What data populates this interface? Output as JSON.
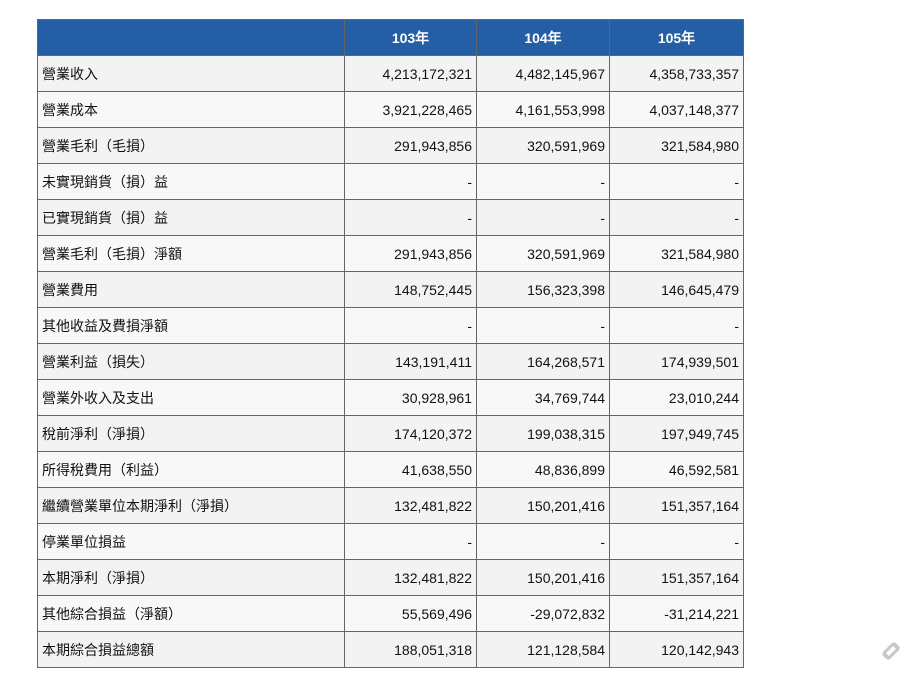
{
  "table": {
    "header": [
      "103年",
      "104年",
      "105年"
    ],
    "rows": [
      [
        "營業收入",
        "4,213,172,321",
        "4,482,145,967",
        "4,358,733,357"
      ],
      [
        "營業成本",
        "3,921,228,465",
        "4,161,553,998",
        "4,037,148,377"
      ],
      [
        "營業毛利（毛損）",
        "291,943,856",
        "320,591,969",
        "321,584,980"
      ],
      [
        "未實現銷貨（損）益",
        "-",
        "-",
        "-"
      ],
      [
        "已實現銷貨（損）益",
        "-",
        "-",
        "-"
      ],
      [
        "營業毛利（毛損）淨額",
        "291,943,856",
        "320,591,969",
        "321,584,980"
      ],
      [
        "營業費用",
        "148,752,445",
        "156,323,398",
        "146,645,479"
      ],
      [
        "其他收益及費損淨額",
        "-",
        "-",
        "-"
      ],
      [
        "營業利益（損失）",
        "143,191,411",
        "164,268,571",
        "174,939,501"
      ],
      [
        "營業外收入及支出",
        "30,928,961",
        "34,769,744",
        "23,010,244"
      ],
      [
        "稅前淨利（淨損）",
        "174,120,372",
        "199,038,315",
        "197,949,745"
      ],
      [
        "所得稅費用（利益）",
        "41,638,550",
        "48,836,899",
        "46,592,581"
      ],
      [
        "繼續營業單位本期淨利（淨損）",
        "132,481,822",
        "150,201,416",
        "151,357,164"
      ],
      [
        "停業單位損益",
        "-",
        "-",
        "-"
      ],
      [
        "本期淨利（淨損）",
        "132,481,822",
        "150,201,416",
        "151,357,164"
      ],
      [
        "其他綜合損益（淨額）",
        "55,569,496",
        "-29,072,832",
        "-31,214,221"
      ],
      [
        "本期綜合損益總額",
        "188,051,318",
        "121,128,584",
        "120,142,943"
      ]
    ]
  }
}
